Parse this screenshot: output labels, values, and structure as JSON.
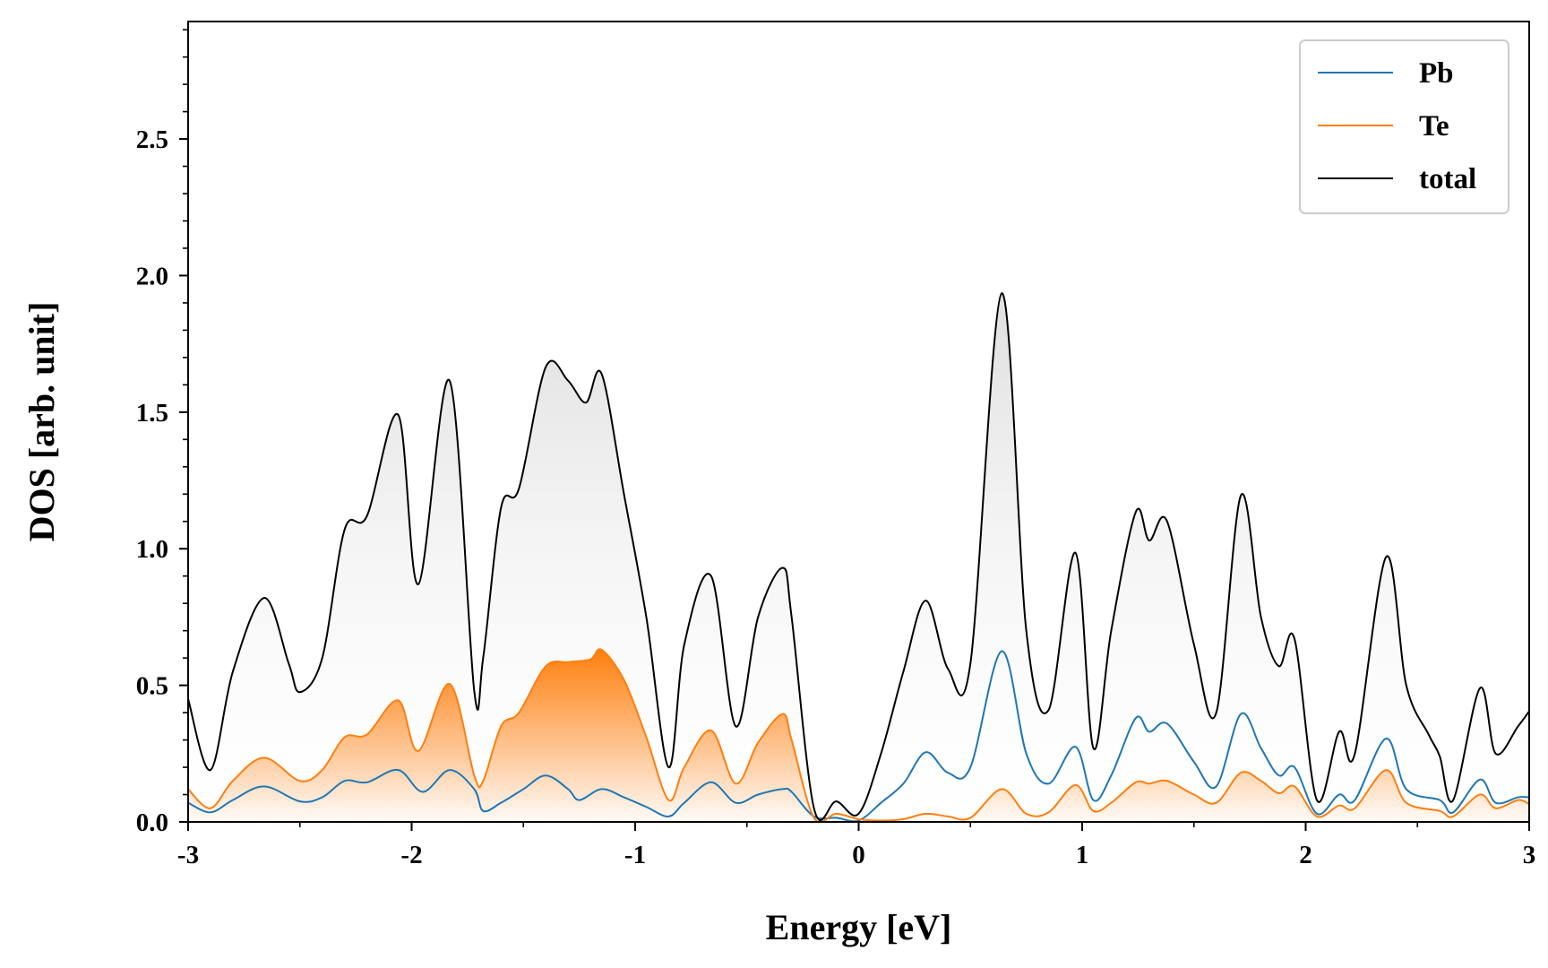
{
  "chart_data": {
    "type": "line",
    "xlabel": "Energy [eV]",
    "ylabel": "DOS [arb. unit]",
    "xlim": [
      -3,
      3
    ],
    "ylim": [
      0,
      2.93
    ],
    "x_ticks": [
      -3,
      -2,
      -1,
      0,
      1,
      2,
      3
    ],
    "x_tick_labels": [
      "-3",
      "-2",
      "-1",
      "0",
      "1",
      "2",
      "3"
    ],
    "x_minor_step": 0.5,
    "y_ticks": [
      0,
      0.5,
      1.0,
      1.5,
      2.0,
      2.5
    ],
    "y_tick_labels": [
      "0.0",
      "0.5",
      "1.0",
      "1.5",
      "2.0",
      "2.5"
    ],
    "y_minor_step": 0.1,
    "grid": false,
    "legend_position": "top-right",
    "series": [
      {
        "name": "Pb",
        "color": "#1f77b4",
        "fill": false,
        "points": [
          [
            -3,
            0.07
          ],
          [
            -2.9,
            0.035
          ],
          [
            -2.8,
            0.08
          ],
          [
            -2.66,
            0.13
          ],
          [
            -2.5,
            0.075
          ],
          [
            -2.4,
            0.09
          ],
          [
            -2.3,
            0.15
          ],
          [
            -2.2,
            0.145
          ],
          [
            -2.06,
            0.19
          ],
          [
            -1.95,
            0.11
          ],
          [
            -1.83,
            0.19
          ],
          [
            -1.72,
            0.12
          ],
          [
            -1.68,
            0.04
          ],
          [
            -1.6,
            0.07
          ],
          [
            -1.5,
            0.12
          ],
          [
            -1.4,
            0.17
          ],
          [
            -1.3,
            0.12
          ],
          [
            -1.25,
            0.08
          ],
          [
            -1.15,
            0.12
          ],
          [
            -1.05,
            0.09
          ],
          [
            -0.95,
            0.055
          ],
          [
            -0.85,
            0.02
          ],
          [
            -0.78,
            0.07
          ],
          [
            -0.66,
            0.145
          ],
          [
            -0.55,
            0.07
          ],
          [
            -0.45,
            0.1
          ],
          [
            -0.34,
            0.12
          ],
          [
            -0.3,
            0.11
          ],
          [
            -0.2,
            0.02
          ],
          [
            -0.1,
            0.015
          ],
          [
            0,
            0.005
          ],
          [
            0.1,
            0.07
          ],
          [
            0.2,
            0.14
          ],
          [
            0.3,
            0.255
          ],
          [
            0.4,
            0.18
          ],
          [
            0.5,
            0.2
          ],
          [
            0.64,
            0.625
          ],
          [
            0.75,
            0.25
          ],
          [
            0.85,
            0.14
          ],
          [
            0.97,
            0.275
          ],
          [
            1.05,
            0.08
          ],
          [
            1.13,
            0.17
          ],
          [
            1.24,
            0.38
          ],
          [
            1.3,
            0.33
          ],
          [
            1.38,
            0.36
          ],
          [
            1.5,
            0.22
          ],
          [
            1.6,
            0.13
          ],
          [
            1.71,
            0.395
          ],
          [
            1.8,
            0.27
          ],
          [
            1.88,
            0.17
          ],
          [
            1.95,
            0.2
          ],
          [
            2.05,
            0.03
          ],
          [
            2.15,
            0.1
          ],
          [
            2.22,
            0.08
          ],
          [
            2.36,
            0.305
          ],
          [
            2.45,
            0.12
          ],
          [
            2.6,
            0.08
          ],
          [
            2.66,
            0.035
          ],
          [
            2.78,
            0.155
          ],
          [
            2.85,
            0.07
          ],
          [
            2.95,
            0.09
          ],
          [
            3,
            0.09
          ]
        ]
      },
      {
        "name": "Te",
        "color": "#ff7f0e",
        "fill": true,
        "points": [
          [
            -3,
            0.12
          ],
          [
            -2.9,
            0.05
          ],
          [
            -2.8,
            0.15
          ],
          [
            -2.66,
            0.235
          ],
          [
            -2.5,
            0.15
          ],
          [
            -2.4,
            0.19
          ],
          [
            -2.3,
            0.31
          ],
          [
            -2.2,
            0.32
          ],
          [
            -2.06,
            0.445
          ],
          [
            -1.97,
            0.26
          ],
          [
            -1.83,
            0.505
          ],
          [
            -1.72,
            0.17
          ],
          [
            -1.68,
            0.15
          ],
          [
            -1.6,
            0.35
          ],
          [
            -1.52,
            0.4
          ],
          [
            -1.4,
            0.57
          ],
          [
            -1.3,
            0.585
          ],
          [
            -1.2,
            0.595
          ],
          [
            -1.15,
            0.63
          ],
          [
            -1.05,
            0.52
          ],
          [
            -0.95,
            0.31
          ],
          [
            -0.85,
            0.08
          ],
          [
            -0.78,
            0.2
          ],
          [
            -0.66,
            0.335
          ],
          [
            -0.55,
            0.14
          ],
          [
            -0.45,
            0.29
          ],
          [
            -0.34,
            0.395
          ],
          [
            -0.3,
            0.3
          ],
          [
            -0.2,
            0.015
          ],
          [
            -0.1,
            0.03
          ],
          [
            0,
            0.01
          ],
          [
            0.1,
            0.005
          ],
          [
            0.2,
            0.01
          ],
          [
            0.3,
            0.03
          ],
          [
            0.4,
            0.02
          ],
          [
            0.5,
            0.015
          ],
          [
            0.64,
            0.12
          ],
          [
            0.75,
            0.03
          ],
          [
            0.85,
            0.035
          ],
          [
            0.97,
            0.135
          ],
          [
            1.05,
            0.04
          ],
          [
            1.13,
            0.07
          ],
          [
            1.24,
            0.145
          ],
          [
            1.3,
            0.14
          ],
          [
            1.38,
            0.15
          ],
          [
            1.5,
            0.1
          ],
          [
            1.6,
            0.07
          ],
          [
            1.71,
            0.18
          ],
          [
            1.8,
            0.15
          ],
          [
            1.88,
            0.105
          ],
          [
            1.95,
            0.13
          ],
          [
            2.05,
            0.02
          ],
          [
            2.15,
            0.06
          ],
          [
            2.22,
            0.05
          ],
          [
            2.36,
            0.19
          ],
          [
            2.45,
            0.07
          ],
          [
            2.6,
            0.04
          ],
          [
            2.66,
            0.02
          ],
          [
            2.78,
            0.1
          ],
          [
            2.85,
            0.05
          ],
          [
            2.95,
            0.08
          ],
          [
            3,
            0.065
          ]
        ]
      },
      {
        "name": "total",
        "color": "#000000",
        "fill": true,
        "points": [
          [
            -3,
            0.45
          ],
          [
            -2.9,
            0.19
          ],
          [
            -2.8,
            0.55
          ],
          [
            -2.66,
            0.82
          ],
          [
            -2.55,
            0.58
          ],
          [
            -2.5,
            0.475
          ],
          [
            -2.4,
            0.6
          ],
          [
            -2.3,
            1.07
          ],
          [
            -2.2,
            1.12
          ],
          [
            -2.06,
            1.49
          ],
          [
            -1.97,
            0.87
          ],
          [
            -1.83,
            1.615
          ],
          [
            -1.72,
            0.48
          ],
          [
            -1.68,
            0.6
          ],
          [
            -1.6,
            1.15
          ],
          [
            -1.52,
            1.22
          ],
          [
            -1.4,
            1.665
          ],
          [
            -1.3,
            1.615
          ],
          [
            -1.22,
            1.535
          ],
          [
            -1.15,
            1.64
          ],
          [
            -1.05,
            1.2
          ],
          [
            -0.95,
            0.75
          ],
          [
            -0.85,
            0.2
          ],
          [
            -0.78,
            0.65
          ],
          [
            -0.66,
            0.9
          ],
          [
            -0.55,
            0.35
          ],
          [
            -0.45,
            0.75
          ],
          [
            -0.34,
            0.93
          ],
          [
            -0.3,
            0.75
          ],
          [
            -0.2,
            0.05
          ],
          [
            -0.1,
            0.075
          ],
          [
            0,
            0.03
          ],
          [
            0.1,
            0.25
          ],
          [
            0.2,
            0.55
          ],
          [
            0.3,
            0.81
          ],
          [
            0.4,
            0.56
          ],
          [
            0.5,
            0.58
          ],
          [
            0.64,
            1.935
          ],
          [
            0.75,
            0.7
          ],
          [
            0.85,
            0.41
          ],
          [
            0.97,
            0.985
          ],
          [
            1.05,
            0.27
          ],
          [
            1.13,
            0.7
          ],
          [
            1.24,
            1.135
          ],
          [
            1.3,
            1.03
          ],
          [
            1.38,
            1.1
          ],
          [
            1.5,
            0.65
          ],
          [
            1.6,
            0.4
          ],
          [
            1.71,
            1.195
          ],
          [
            1.8,
            0.75
          ],
          [
            1.88,
            0.57
          ],
          [
            1.95,
            0.67
          ],
          [
            2.05,
            0.08
          ],
          [
            2.15,
            0.33
          ],
          [
            2.22,
            0.25
          ],
          [
            2.36,
            0.97
          ],
          [
            2.45,
            0.5
          ],
          [
            2.55,
            0.32
          ],
          [
            2.6,
            0.24
          ],
          [
            2.66,
            0.08
          ],
          [
            2.78,
            0.49
          ],
          [
            2.85,
            0.25
          ],
          [
            2.95,
            0.35
          ],
          [
            3,
            0.405
          ]
        ]
      }
    ]
  }
}
